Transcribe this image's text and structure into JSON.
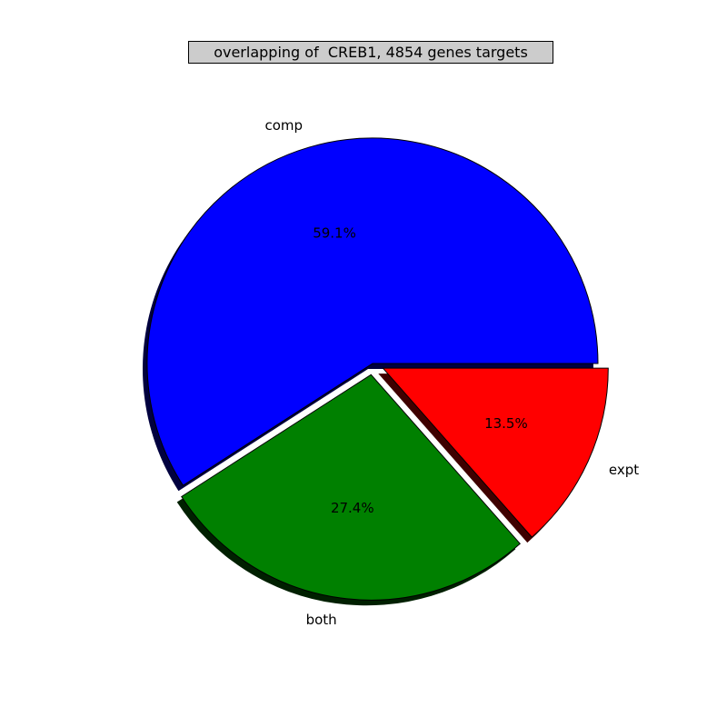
{
  "chart_data": {
    "type": "pie",
    "title": "overlapping of  CREB1, 4854 genes targets",
    "slices": [
      {
        "label": "comp",
        "pct_label": "59.1%",
        "value": 59.1,
        "color": "#0000ff",
        "shadow": "#00003f",
        "explode": 0
      },
      {
        "label": "both",
        "pct_label": "27.4%",
        "value": 27.4,
        "color": "#008000",
        "shadow": "#002000",
        "explode": 0.05
      },
      {
        "label": "expt",
        "pct_label": "13.5%",
        "value": 13.5,
        "color": "#ff0000",
        "shadow": "#3f0000",
        "explode": 0.05
      }
    ],
    "start_angle_deg": 0,
    "direction": "counterclockwise",
    "shadow": true,
    "legend": "none",
    "grid": false
  }
}
